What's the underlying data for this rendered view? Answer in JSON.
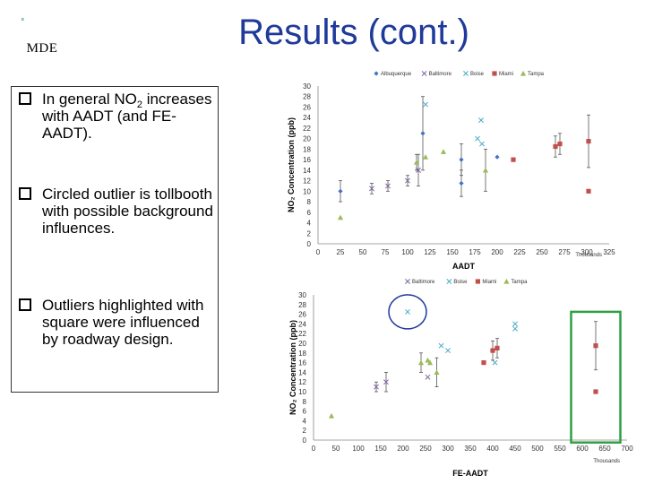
{
  "header": {
    "logo_text": "MDE",
    "title": "Results (cont.)"
  },
  "bullets": [
    {
      "text_main": "In general NO",
      "text_sub": "2",
      "text_rest": " increases with AADT (and FE-AADT)."
    },
    {
      "text_main": "Circled outlier is tollbooth with possible background influences.",
      "text_sub": "",
      "text_rest": ""
    },
    {
      "text_main": "Outliers highlighted with square were influenced by roadway design.",
      "text_sub": "",
      "text_rest": ""
    }
  ],
  "chart_data": [
    {
      "type": "scatter",
      "xlabel": "AADT",
      "x_unit": "Thousands",
      "ylabel": "NO₂ Concentration (ppb)",
      "xlim": [
        0,
        325
      ],
      "ylim": [
        0,
        30
      ],
      "xticks": [
        0,
        25,
        50,
        75,
        100,
        125,
        150,
        175,
        200,
        225,
        250,
        275,
        300,
        325
      ],
      "yticks": [
        0,
        2,
        4,
        6,
        8,
        10,
        12,
        14,
        16,
        18,
        20,
        22,
        24,
        26,
        28,
        30
      ],
      "grid": false,
      "legend": "top",
      "series": [
        {
          "name": "Albuquerque",
          "color": "#4472c4",
          "marker": "diamond",
          "points": [
            [
              25,
              10,
              2
            ],
            [
              117,
              21,
              7
            ],
            [
              160,
              16,
              3
            ],
            [
              160,
              11.5,
              2.5
            ],
            [
              200,
              16.5,
              0
            ]
          ]
        },
        {
          "name": "Baltimore",
          "color": "#8064a2",
          "marker": "x",
          "points": [
            [
              60,
              10.5,
              1
            ],
            [
              78,
              11,
              1
            ],
            [
              100,
              12,
              1
            ],
            [
              112,
              14,
              3
            ]
          ]
        },
        {
          "name": "Boise",
          "color": "#4bacc6",
          "marker": "x",
          "points": [
            [
              120,
              26.5,
              0
            ],
            [
              178,
              20,
              0
            ],
            [
              182,
              23.5,
              0
            ],
            [
              183,
              19,
              0
            ]
          ]
        },
        {
          "name": "Miami",
          "color": "#c0504d",
          "marker": "square",
          "points": [
            [
              218,
              16,
              0
            ],
            [
              265,
              18.5,
              2
            ],
            [
              270,
              19,
              2
            ],
            [
              302,
              19.5,
              5
            ],
            [
              302,
              10,
              0
            ]
          ]
        },
        {
          "name": "Tampa",
          "color": "#9bbb59",
          "marker": "triangle",
          "points": [
            [
              25,
              5,
              0
            ],
            [
              110,
              15.5,
              1.5
            ],
            [
              120,
              16.5,
              0
            ],
            [
              140,
              17.5,
              0
            ],
            [
              187,
              14,
              4
            ]
          ]
        }
      ]
    },
    {
      "type": "scatter",
      "xlabel": "FE-AADT",
      "x_unit": "Thousands",
      "ylabel": "NO₂ Concentration (ppb)",
      "xlim": [
        0,
        700
      ],
      "ylim": [
        0,
        30
      ],
      "xticks": [
        0,
        50,
        100,
        150,
        200,
        250,
        300,
        350,
        400,
        450,
        500,
        550,
        600,
        650,
        700
      ],
      "yticks": [
        0,
        2,
        4,
        6,
        8,
        10,
        12,
        14,
        16,
        18,
        20,
        22,
        24,
        26,
        28,
        30
      ],
      "grid": false,
      "legend": "top",
      "annotations": [
        "circle around tollbooth outlier",
        "square around roadway-design outliers"
      ],
      "series": [
        {
          "name": "Baltimore",
          "color": "#8064a2",
          "marker": "x",
          "points": [
            [
              140,
              11,
              1
            ],
            [
              162,
              12,
              2
            ],
            [
              255,
              13,
              0
            ]
          ]
        },
        {
          "name": "Boise",
          "color": "#4bacc6",
          "marker": "x",
          "points": [
            [
              210,
              26.5,
              0
            ],
            [
              285,
              19.5,
              0
            ],
            [
              300,
              18.5,
              0
            ],
            [
              450,
              24,
              0
            ],
            [
              450,
              23,
              0
            ],
            [
              405,
              16,
              0
            ]
          ]
        },
        {
          "name": "Miami",
          "color": "#c0504d",
          "marker": "square",
          "points": [
            [
              380,
              16,
              0
            ],
            [
              400,
              18.5,
              2
            ],
            [
              410,
              19,
              2
            ],
            [
              630,
              19.5,
              5
            ],
            [
              630,
              10,
              0
            ]
          ]
        },
        {
          "name": "Tampa",
          "color": "#9bbb59",
          "marker": "triangle",
          "points": [
            [
              40,
              5,
              0
            ],
            [
              240,
              16,
              2
            ],
            [
              255,
              16.5,
              0
            ],
            [
              260,
              16,
              0
            ],
            [
              275,
              14,
              3
            ]
          ]
        }
      ]
    }
  ]
}
